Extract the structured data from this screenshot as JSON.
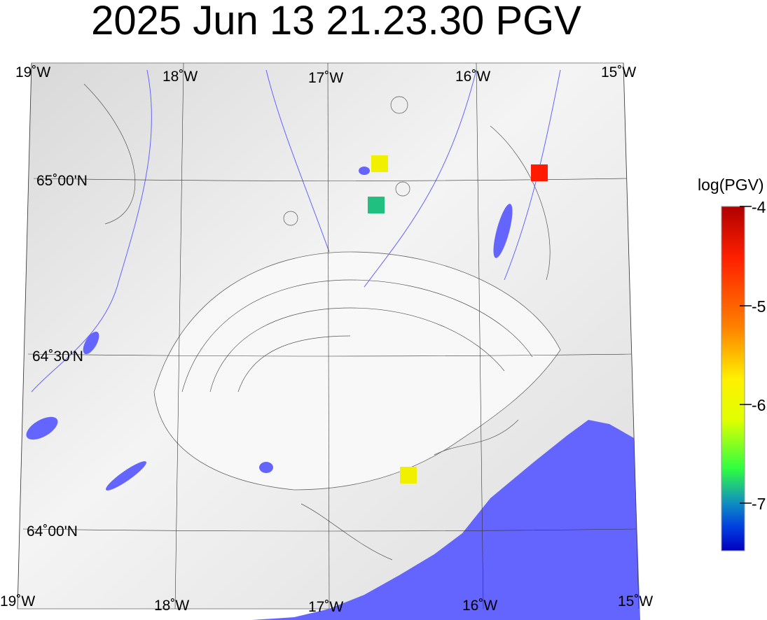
{
  "title": "2025 Jun 13 21.23.30 PGV",
  "map": {
    "top_lon_labels": [
      "19˚W",
      "18˚W",
      "17˚W",
      "16˚W",
      "15˚W"
    ],
    "bottom_lon_labels": [
      "19˚W",
      "18˚W",
      "17˚W",
      "16˚W",
      "15˚W"
    ],
    "lat_labels": [
      "65˚00'N",
      "64˚30'N",
      "64˚00'N"
    ],
    "land_color": "#e6e6e6",
    "water_color": "#6464ff",
    "stations": [
      {
        "color": "#f0f000",
        "log_pgv": -5.6
      },
      {
        "color": "#20c080",
        "log_pgv": -6.9
      },
      {
        "color": "#ff1a00",
        "log_pgv": -4.5
      },
      {
        "color": "#f0f000",
        "log_pgv": -5.6
      }
    ]
  },
  "colorbar": {
    "label": "log(PGV)",
    "range": [
      -7.5,
      -4
    ],
    "ticks": [
      "-4",
      "-5",
      "-6",
      "-7"
    ],
    "colors": [
      "#b00000",
      "#ff2000",
      "#ff8000",
      "#fff000",
      "#e0ff00",
      "#30ff40",
      "#1090c0",
      "#0040e0",
      "#0000c0"
    ]
  }
}
